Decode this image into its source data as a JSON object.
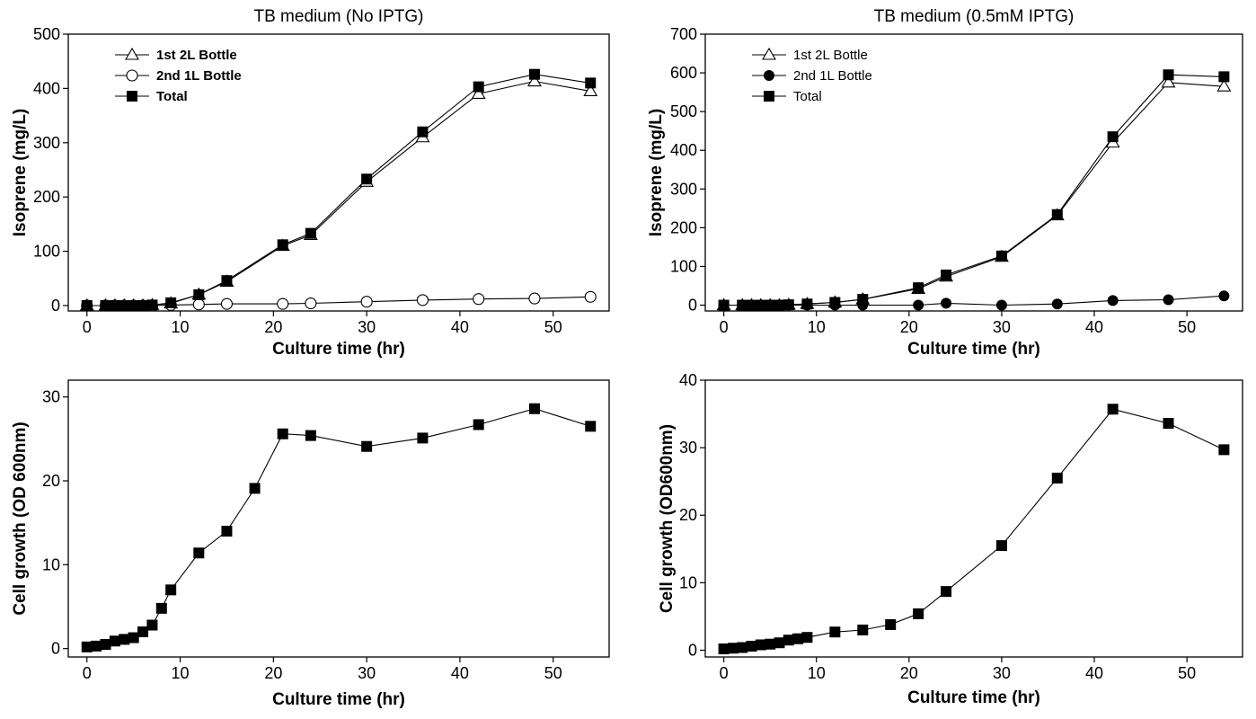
{
  "chart_data": [
    {
      "id": "tl",
      "type": "line",
      "title": "TB medium (No IPTG)",
      "xlabel": "Culture time (hr)",
      "ylabel": "Isoprene (mg/L)",
      "xlim": [
        -2,
        56
      ],
      "ylim": [
        -10,
        500
      ],
      "xticks": [
        0,
        10,
        20,
        30,
        40,
        50
      ],
      "yticks": [
        0,
        100,
        200,
        300,
        400,
        500
      ],
      "grid": false,
      "legend_position": "top-left",
      "legend_bold": true,
      "series": [
        {
          "name": "1st 2L Bottle",
          "marker": "triangle-open",
          "x": [
            0,
            2,
            3,
            4,
            5,
            6,
            7,
            9,
            12,
            15,
            21,
            24,
            30,
            36,
            42,
            48,
            54
          ],
          "y": [
            0,
            0,
            0,
            0,
            0,
            0,
            1,
            4,
            20,
            44,
            110,
            130,
            228,
            310,
            390,
            413,
            395
          ]
        },
        {
          "name": "2nd 1L Bottle",
          "marker": "circle-open",
          "x": [
            0,
            2,
            3,
            4,
            5,
            6,
            7,
            9,
            12,
            15,
            21,
            24,
            30,
            36,
            42,
            48,
            54
          ],
          "y": [
            0,
            0,
            0,
            0,
            0,
            0,
            0,
            1,
            2,
            3,
            3,
            4,
            7,
            10,
            12,
            13,
            16
          ]
        },
        {
          "name": "Total",
          "marker": "square-filled",
          "x": [
            0,
            2,
            3,
            4,
            5,
            6,
            7,
            9,
            12,
            15,
            21,
            24,
            30,
            36,
            42,
            48,
            54
          ],
          "y": [
            0,
            0,
            0,
            0,
            0,
            0,
            1,
            5,
            20,
            46,
            112,
            133,
            233,
            320,
            403,
            426,
            410
          ]
        }
      ]
    },
    {
      "id": "tr",
      "type": "line",
      "title": "TB medium (0.5mM IPTG)",
      "xlabel": "Culture time (hr)",
      "ylabel": "Isoprene (mg/L)",
      "xlim": [
        -2,
        56
      ],
      "ylim": [
        -15,
        700
      ],
      "xticks": [
        0,
        10,
        20,
        30,
        40,
        50
      ],
      "yticks": [
        0,
        100,
        200,
        300,
        400,
        500,
        600,
        700
      ],
      "grid": false,
      "legend_position": "top-left",
      "legend_bold": false,
      "series": [
        {
          "name": "1st 2L Bottle",
          "marker": "triangle-open",
          "x": [
            0,
            2,
            3,
            4,
            5,
            6,
            7,
            9,
            12,
            15,
            21,
            24,
            30,
            36,
            42,
            48,
            54
          ],
          "y": [
            0,
            0,
            0,
            0,
            0,
            0,
            1,
            3,
            7,
            15,
            42,
            74,
            125,
            232,
            420,
            575,
            565
          ]
        },
        {
          "name": "2nd 1L Bottle",
          "marker": "circle-filled",
          "x": [
            0,
            2,
            3,
            4,
            5,
            6,
            7,
            9,
            12,
            15,
            21,
            24,
            30,
            36,
            42,
            48,
            54
          ],
          "y": [
            0,
            0,
            0,
            0,
            0,
            0,
            0,
            0,
            0,
            0,
            0,
            5,
            0,
            3,
            12,
            14,
            24
          ]
        },
        {
          "name": "Total",
          "marker": "square-filled",
          "x": [
            0,
            2,
            3,
            4,
            5,
            6,
            7,
            9,
            12,
            15,
            21,
            24,
            30,
            36,
            42,
            48,
            54
          ],
          "y": [
            0,
            0,
            0,
            0,
            0,
            0,
            1,
            3,
            7,
            15,
            45,
            78,
            127,
            234,
            435,
            595,
            590
          ]
        }
      ]
    },
    {
      "id": "bl",
      "type": "line",
      "title": "",
      "xlabel": "Culture time (hr)",
      "ylabel": "Cell growth (OD 600nm)",
      "xlim": [
        -2,
        56
      ],
      "ylim": [
        -1,
        32
      ],
      "xticks": [
        0,
        10,
        20,
        30,
        40,
        50
      ],
      "yticks": [
        0,
        10,
        20,
        30
      ],
      "grid": false,
      "series": [
        {
          "name": "",
          "marker": "square-filled",
          "x": [
            0,
            1,
            2,
            3,
            4,
            5,
            6,
            7,
            8,
            9,
            12,
            15,
            18,
            21,
            24,
            30,
            36,
            42,
            48,
            54
          ],
          "y": [
            0.2,
            0.3,
            0.5,
            0.9,
            1.1,
            1.3,
            2.0,
            2.8,
            4.8,
            7.0,
            11.4,
            14.0,
            19.1,
            25.6,
            25.4,
            24.1,
            25.1,
            26.7,
            28.6,
            26.5
          ]
        }
      ]
    },
    {
      "id": "br",
      "type": "line",
      "title": "",
      "xlabel": "Culture time (hr)",
      "ylabel": "Cell growth (OD600nm)",
      "xlim": [
        -2,
        56
      ],
      "ylim": [
        -1,
        40
      ],
      "xticks": [
        0,
        10,
        20,
        30,
        40,
        50
      ],
      "yticks": [
        0,
        10,
        20,
        30,
        40
      ],
      "grid": false,
      "series": [
        {
          "name": "",
          "marker": "square-filled",
          "x": [
            0,
            1,
            2,
            3,
            4,
            5,
            6,
            7,
            8,
            9,
            12,
            15,
            18,
            21,
            24,
            30,
            36,
            42,
            48,
            54
          ],
          "y": [
            0.2,
            0.3,
            0.4,
            0.6,
            0.8,
            0.9,
            1.1,
            1.5,
            1.7,
            1.9,
            2.7,
            3.0,
            3.8,
            5.4,
            8.7,
            15.5,
            25.5,
            35.7,
            33.6,
            29.7
          ]
        }
      ]
    }
  ]
}
